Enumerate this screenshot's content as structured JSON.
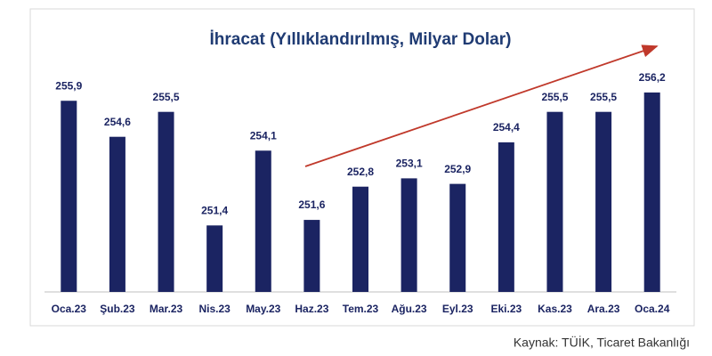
{
  "chart_data": {
    "type": "bar",
    "title": "İhracat (Yıllıklandırılmış, Milyar Dolar)",
    "categories": [
      "Oca.23",
      "Şub.23",
      "Mar.23",
      "Nis.23",
      "May.23",
      "Haz.23",
      "Tem.23",
      "Ağu.23",
      "Eyl.23",
      "Eki.23",
      "Kas.23",
      "Ara.23",
      "Oca.24"
    ],
    "values": [
      255.9,
      254.6,
      255.5,
      251.4,
      254.1,
      251.6,
      252.8,
      253.1,
      252.9,
      254.4,
      255.5,
      255.5,
      256.2
    ],
    "value_labels": [
      "255,9",
      "254,6",
      "255,5",
      "251,4",
      "254,1",
      "251,6",
      "252,8",
      "253,1",
      "252,9",
      "254,4",
      "255,5",
      "255,5",
      "256,2"
    ],
    "color": "#1b2462",
    "ylim": [
      249,
      257
    ]
  },
  "source": "Kaynak: TÜİK, Ticaret Bakanlığı"
}
